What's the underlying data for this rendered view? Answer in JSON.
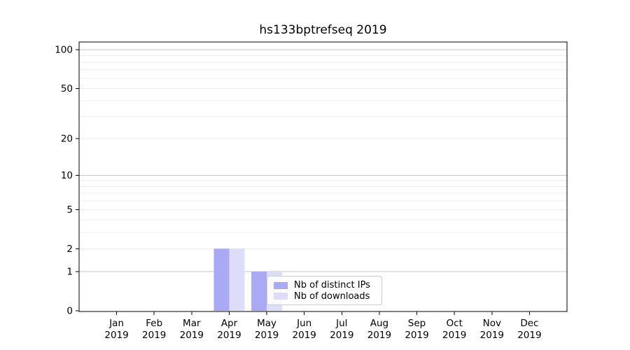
{
  "chart_data": {
    "type": "bar",
    "title": "hs133bptrefseq 2019",
    "categories": [
      "Jan",
      "Feb",
      "Mar",
      "Apr",
      "May",
      "Jun",
      "Jul",
      "Aug",
      "Sep",
      "Oct",
      "Nov",
      "Dec"
    ],
    "category_year": "2019",
    "series": [
      {
        "name": "Nb of distinct IPs",
        "color": "#a9a9f4",
        "values": [
          0,
          0,
          0,
          2,
          1,
          0,
          0,
          0,
          0,
          0,
          0,
          0
        ]
      },
      {
        "name": "Nb of downloads",
        "color": "#ddddf8",
        "values": [
          0,
          0,
          0,
          2,
          1,
          0,
          0,
          0,
          0,
          0,
          0,
          0
        ]
      }
    ],
    "xlabel": "",
    "ylabel": "",
    "yticks": [
      0,
      1,
      2,
      5,
      10,
      20,
      50,
      100
    ],
    "major_gridlines": [
      1,
      10,
      100
    ],
    "minor_gridlines": [
      2,
      3,
      4,
      5,
      6,
      7,
      8,
      9,
      20,
      30,
      40,
      50,
      60,
      70,
      80,
      90
    ],
    "scale": "log-like: y = log10(1 + value)",
    "ylim": [
      0,
      110
    ],
    "grid": true,
    "legend_position": "lower center, overlapping the May bars"
  },
  "colors": {
    "major_grid": "#c6c6c6",
    "minor_grid": "#ececec",
    "axis": "#000000",
    "legend_border": "#cccccc"
  }
}
